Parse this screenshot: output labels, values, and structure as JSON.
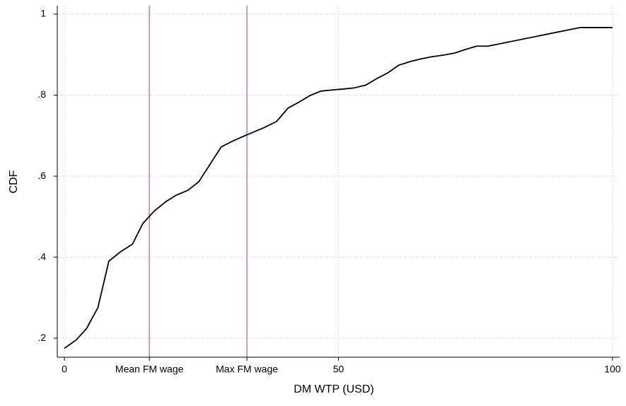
{
  "chart_data": {
    "type": "line",
    "xlabel": "DM WTP (USD)",
    "ylabel": "CDF",
    "x": [
      0,
      2.1,
      4,
      6.1,
      8.1,
      10.2,
      12.4,
      14.3,
      16.4,
      18.5,
      20.4,
      22.5,
      24.5,
      26.6,
      28.6,
      30.6,
      32.6,
      34.7,
      36.6,
      38.7,
      40.8,
      42.7,
      44.8,
      46.8,
      48.9,
      50.8,
      52.9,
      55,
      57,
      59,
      61,
      63.1,
      65.2,
      67.1,
      69.2,
      71.2,
      73.2,
      75.2,
      77.3,
      94.1,
      100
    ],
    "series": [
      {
        "color": "#000000",
        "values": [
          0.175,
          0.195,
          0.223,
          0.275,
          0.39,
          0.413,
          0.432,
          0.483,
          0.514,
          0.537,
          0.553,
          0.565,
          0.586,
          0.63,
          0.672,
          0.686,
          0.698,
          0.71,
          0.721,
          0.735,
          0.768,
          0.782,
          0.799,
          0.81,
          0.813,
          0.815,
          0.818,
          0.825,
          0.841,
          0.855,
          0.874,
          0.883,
          0.89,
          0.895,
          0.899,
          0.904,
          0.913,
          0.921,
          0.921,
          0.967,
          0.967
        ]
      }
    ],
    "xlim": [
      -1.3,
      101.3
    ],
    "ylim": [
      0.153,
      1.021
    ],
    "xticks": [
      0,
      {
        "value": 15.5,
        "label": "Mean FM wage"
      },
      {
        "value": 33.3,
        "label": "Max FM wage"
      },
      50,
      100
    ],
    "yticks": [
      {
        "value": 0.2,
        "label": ".2"
      },
      {
        "value": 0.4,
        "label": ".4"
      },
      {
        "value": 0.6,
        "label": ".6"
      },
      {
        "value": 0.8,
        "label": ".8"
      },
      1
    ],
    "grid": true,
    "reference_line_color": "#c77aa8"
  }
}
